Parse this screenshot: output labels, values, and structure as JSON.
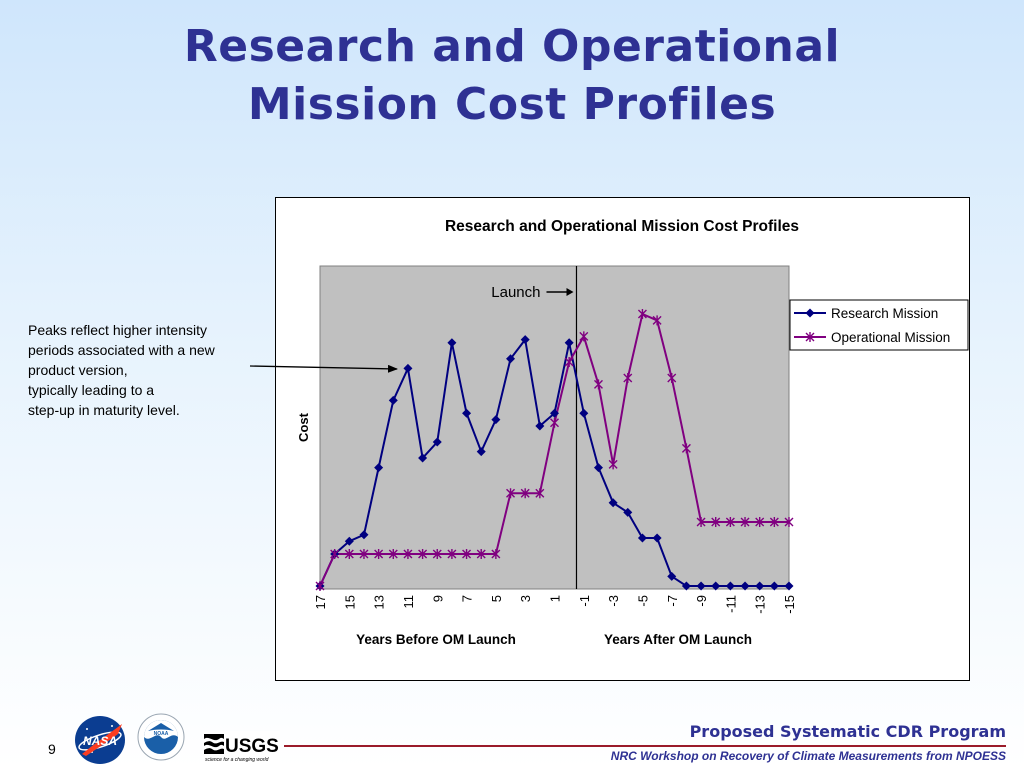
{
  "slide": {
    "title_line1": "Research and Operational",
    "title_line2": "Mission Cost Profiles",
    "page_number": "9",
    "annotation_lines": [
      "Peaks reflect higher intensity",
      "periods associated with a new",
      "product version,",
      "typically leading to a",
      "step-up in maturity level."
    ],
    "footer_program": "Proposed Systematic CDR Program",
    "footer_workshop": "NRC Workshop on Recovery of Climate Measurements from NPOESS",
    "logos": {
      "nasa": "NASA",
      "noaa": "NOAA",
      "usgs": "USGS",
      "usgs_tagline": "science for a changing world"
    },
    "colors": {
      "title": "#2e3193",
      "footer_rule": "#9b1b2a",
      "plot_area": "#c0c0c0",
      "research_series": "#000080",
      "operational_series": "#800080"
    }
  },
  "chart_data": {
    "type": "line",
    "title": "Research and Operational Mission Cost Profiles",
    "ylabel": "Cost",
    "xlabel_left": "Years Before OM Launch",
    "xlabel_right": "Years After OM Launch",
    "launch_label": "Launch",
    "grid": false,
    "legend_position": "right",
    "y_ticks_shown": false,
    "ylim": [
      0,
      100
    ],
    "categories": [
      "17",
      "16",
      "15",
      "14",
      "13",
      "12",
      "11",
      "10",
      "9",
      "8",
      "7",
      "6",
      "5",
      "4",
      "3",
      "2",
      "1",
      "0",
      "-1",
      "-2",
      "-3",
      "-4",
      "-5",
      "-6",
      "-7",
      "-8",
      "-9",
      "-10",
      "-11",
      "-12",
      "-13",
      "-14",
      "-15"
    ],
    "tick_labels": [
      "17",
      "15",
      "13",
      "11",
      "9",
      "7",
      "5",
      "3",
      "1",
      "-1",
      "-3",
      "-5",
      "-7",
      "-9",
      "-11",
      "-13",
      "-15"
    ],
    "launch_after_category": "0",
    "series": [
      {
        "name": "Research Mission",
        "color": "#000080",
        "marker": "diamond",
        "values": [
          0,
          10,
          14,
          16,
          37,
          58,
          68,
          40,
          45,
          76,
          54,
          42,
          52,
          71,
          77,
          50,
          54,
          76,
          54,
          37,
          26,
          23,
          15,
          15,
          3,
          0,
          0,
          0,
          0,
          0,
          0,
          0,
          0
        ]
      },
      {
        "name": "Operational Mission",
        "color": "#800080",
        "marker": "star",
        "values": [
          0,
          10,
          10,
          10,
          10,
          10,
          10,
          10,
          10,
          10,
          10,
          10,
          10,
          29,
          29,
          29,
          51,
          70,
          78,
          63,
          38,
          65,
          85,
          83,
          65,
          43,
          20,
          20,
          20,
          20,
          20,
          20,
          20
        ]
      }
    ]
  }
}
